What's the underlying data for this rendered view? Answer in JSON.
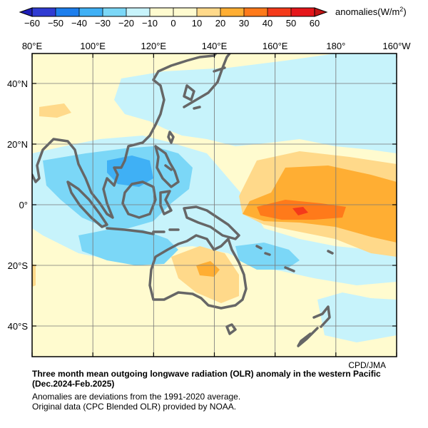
{
  "figure": {
    "colorbar": {
      "ticks": [
        "−60",
        "−50",
        "−40",
        "−30",
        "−20",
        "−10",
        "0",
        "10",
        "20",
        "30",
        "40",
        "50",
        "60"
      ],
      "unit_text": "anomalies(W/m",
      "unit_sup": "2",
      "unit_close": ")",
      "colors": [
        "#2f3bd2",
        "#1c7eed",
        "#3fb0f5",
        "#7bd7f7",
        "#c7f3fb",
        "#fffbcf",
        "#fffbcf",
        "#ffd98a",
        "#ffae33",
        "#ff7a1a",
        "#f43a1a",
        "#e5161a"
      ]
    },
    "map": {
      "lon_labels": [
        "80°E",
        "100°E",
        "120°E",
        "140°E",
        "160°E",
        "180°",
        "160°W"
      ],
      "lat_labels": [
        "40°N",
        "20°N",
        "0°",
        "20°S",
        "40°S"
      ],
      "coast_color": "#666666",
      "background_color": "#fffbcf"
    },
    "credit": "CPD/JMA",
    "caption": {
      "title_line1": "Three month mean outgoing longwave radiation (OLR) anomaly in the western Pacific",
      "title_line2": "(Dec.2024-Feb.2025)",
      "note": "Anomalies are deviations from the 1991-2020 average.",
      "source": "Original data (CPC Blended OLR) provided by NOAA."
    }
  }
}
